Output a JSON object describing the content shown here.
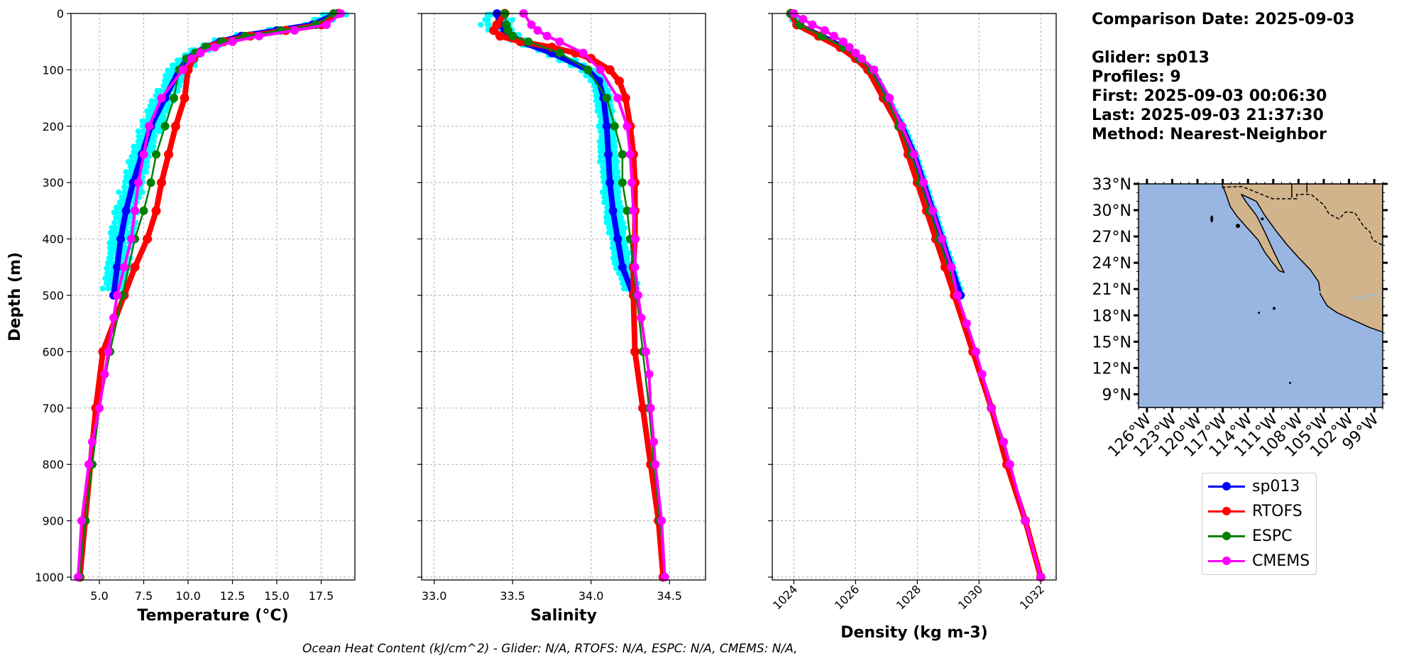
{
  "info": {
    "comparison_date": "Comparison Date: 2025-09-03",
    "glider": "Glider: sp013",
    "profiles": "Profiles: 9",
    "first": "First: 2025-09-03 00:06:30",
    "last": "Last: 2025-09-03 21:37:30",
    "method": "Method: Nearest-Neighbor"
  },
  "footer": "Ocean Heat Content (kJ/cm^2) - Glider: N/A,  RTOFS: N/A,  ESPC: N/A,  CMEMS: N/A,",
  "colors": {
    "glider": "#0000ff",
    "glider_profiles": "#00ffff",
    "rtofs": "#ff0000",
    "espc": "#008000",
    "cmems": "#ff00ff",
    "ocean": "#99b6e2",
    "land": "#d2b48c"
  },
  "legend": [
    {
      "label": "sp013",
      "color": "#0000ff"
    },
    {
      "label": "RTOFS",
      "color": "#ff0000"
    },
    {
      "label": "ESPC",
      "color": "#008000"
    },
    {
      "label": "CMEMS",
      "color": "#ff00ff"
    }
  ],
  "chart_data": [
    {
      "type": "line",
      "xlabel": "Temperature (°C)",
      "ylabel": "Depth (m)",
      "xlim": [
        3.4,
        19.4
      ],
      "ylim": [
        1005,
        0
      ],
      "xticks": [
        5.0,
        7.5,
        10.0,
        12.5,
        15.0,
        17.5
      ],
      "xtick_labels": [
        "5.0",
        "7.5",
        "10.0",
        "12.5",
        "15.0",
        "17.5"
      ],
      "yticks": [
        0,
        100,
        200,
        300,
        400,
        500,
        600,
        700,
        800,
        900,
        1000
      ],
      "grid": true,
      "series": [
        {
          "name": "sp013",
          "depth": [
            0,
            20,
            30,
            40,
            50,
            60,
            70,
            80,
            100,
            150,
            200,
            250,
            300,
            350,
            400,
            450,
            500
          ],
          "values": [
            18.4,
            17.0,
            15.0,
            13.0,
            11.8,
            11.0,
            10.4,
            10.0,
            9.5,
            8.7,
            7.9,
            7.4,
            6.9,
            6.5,
            6.2,
            6.0,
            5.8
          ]
        },
        {
          "name": "RTOFS",
          "depth": [
            0,
            20,
            30,
            40,
            50,
            60,
            70,
            80,
            100,
            150,
            200,
            250,
            300,
            350,
            400,
            450,
            500,
            600,
            700,
            800,
            900,
            1000
          ],
          "values": [
            18.5,
            17.5,
            15.5,
            13.5,
            12.0,
            11.0,
            10.6,
            10.3,
            10.0,
            9.8,
            9.3,
            8.9,
            8.5,
            8.2,
            7.7,
            7.0,
            6.4,
            5.2,
            4.8,
            4.5,
            4.2,
            3.9
          ]
        },
        {
          "name": "ESPC",
          "depth": [
            0,
            20,
            30,
            40,
            50,
            60,
            70,
            80,
            100,
            150,
            200,
            250,
            300,
            350,
            400,
            500,
            600,
            700,
            800,
            900,
            1000
          ],
          "values": [
            18.2,
            17.2,
            15.2,
            13.2,
            11.9,
            11.0,
            10.4,
            9.9,
            9.5,
            9.2,
            8.7,
            8.2,
            7.9,
            7.5,
            7.0,
            6.3,
            5.6,
            5.0,
            4.6,
            4.2,
            3.9
          ]
        },
        {
          "name": "CMEMS",
          "depth": [
            0,
            20,
            30,
            40,
            50,
            60,
            70,
            80,
            100,
            150,
            200,
            250,
            300,
            350,
            400,
            450,
            500,
            540,
            600,
            640,
            700,
            760,
            800,
            900,
            1000
          ],
          "values": [
            18.6,
            17.8,
            16.0,
            14.0,
            12.5,
            11.5,
            10.7,
            10.2,
            9.7,
            8.5,
            7.8,
            7.5,
            7.2,
            7.0,
            6.8,
            6.4,
            6.0,
            5.8,
            5.5,
            5.3,
            5.0,
            4.6,
            4.4,
            4.0,
            3.8
          ]
        }
      ]
    },
    {
      "type": "line",
      "xlabel": "Salinity",
      "xlim": [
        32.92,
        34.73
      ],
      "ylim": [
        1005,
        0
      ],
      "xticks": [
        33.0,
        33.5,
        34.0,
        34.5
      ],
      "xtick_labels": [
        "33.0",
        "33.5",
        "34.0",
        "34.5"
      ],
      "grid": true,
      "series": [
        {
          "name": "sp013",
          "depth": [
            0,
            20,
            30,
            40,
            50,
            70,
            100,
            120,
            150,
            200,
            250,
            300,
            350,
            400,
            450,
            500
          ],
          "values": [
            33.4,
            33.42,
            33.45,
            33.5,
            33.55,
            33.75,
            33.98,
            34.05,
            34.08,
            34.1,
            34.11,
            34.12,
            34.14,
            34.17,
            34.2,
            34.27
          ]
        },
        {
          "name": "RTOFS",
          "depth": [
            0,
            20,
            30,
            40,
            50,
            60,
            70,
            80,
            100,
            120,
            150,
            200,
            250,
            300,
            350,
            400,
            450,
            500,
            600,
            700,
            800,
            900,
            1000
          ],
          "values": [
            33.45,
            33.4,
            33.38,
            33.42,
            33.55,
            33.75,
            33.9,
            34.0,
            34.12,
            34.18,
            34.22,
            34.25,
            34.27,
            34.28,
            34.28,
            34.28,
            34.27,
            34.27,
            34.28,
            34.33,
            34.38,
            34.43,
            34.46
          ]
        },
        {
          "name": "ESPC",
          "depth": [
            0,
            20,
            30,
            40,
            50,
            70,
            100,
            150,
            200,
            250,
            300,
            350,
            400,
            500,
            600,
            700,
            800,
            900,
            1000
          ],
          "values": [
            33.45,
            33.46,
            33.47,
            33.5,
            33.6,
            33.8,
            33.98,
            34.1,
            34.15,
            34.2,
            34.2,
            34.23,
            34.25,
            34.29,
            34.33,
            34.37,
            34.4,
            34.44,
            34.47
          ]
        },
        {
          "name": "CMEMS",
          "depth": [
            0,
            20,
            30,
            40,
            50,
            70,
            100,
            150,
            200,
            250,
            300,
            350,
            400,
            450,
            500,
            540,
            600,
            640,
            700,
            760,
            800,
            900,
            1000
          ],
          "values": [
            33.57,
            33.62,
            33.66,
            33.72,
            33.8,
            33.95,
            34.06,
            34.17,
            34.23,
            34.25,
            34.26,
            34.27,
            34.28,
            34.28,
            34.3,
            34.32,
            34.35,
            34.37,
            34.38,
            34.4,
            34.41,
            34.45,
            34.47
          ]
        }
      ]
    },
    {
      "type": "line",
      "xlabel": "Density (kg m-3)",
      "xlim": [
        1023.3,
        1032.5
      ],
      "ylim": [
        1005,
        0
      ],
      "xticks": [
        1024,
        1026,
        1028,
        1030,
        1032
      ],
      "xtick_labels": [
        "1024",
        "1026",
        "1028",
        "1030",
        "1032"
      ],
      "grid": true,
      "series": [
        {
          "name": "sp013",
          "depth": [
            0,
            20,
            40,
            60,
            80,
            100,
            150,
            200,
            250,
            300,
            350,
            400,
            450,
            500
          ],
          "values": [
            1023.9,
            1024.1,
            1024.9,
            1025.6,
            1026.1,
            1026.5,
            1027.0,
            1027.5,
            1027.9,
            1028.2,
            1028.5,
            1028.8,
            1029.1,
            1029.4
          ]
        },
        {
          "name": "RTOFS",
          "depth": [
            0,
            20,
            40,
            60,
            80,
            100,
            150,
            200,
            250,
            300,
            350,
            400,
            450,
            500,
            600,
            700,
            800,
            900,
            1000
          ],
          "values": [
            1023.9,
            1024.1,
            1024.8,
            1025.5,
            1026.0,
            1026.4,
            1026.9,
            1027.4,
            1027.7,
            1028.0,
            1028.3,
            1028.6,
            1028.9,
            1029.2,
            1029.8,
            1030.4,
            1030.9,
            1031.5,
            1032.0
          ]
        },
        {
          "name": "ESPC",
          "depth": [
            0,
            20,
            40,
            60,
            80,
            100,
            150,
            200,
            250,
            300,
            350,
            400,
            500,
            600,
            700,
            800,
            900,
            1000
          ],
          "values": [
            1023.9,
            1024.2,
            1024.9,
            1025.6,
            1026.1,
            1026.5,
            1027.0,
            1027.4,
            1027.8,
            1028.1,
            1028.4,
            1028.7,
            1029.3,
            1029.9,
            1030.4,
            1031.0,
            1031.5,
            1032.0
          ]
        },
        {
          "name": "CMEMS",
          "depth": [
            0,
            10,
            20,
            30,
            40,
            50,
            60,
            70,
            80,
            100,
            150,
            200,
            250,
            300,
            350,
            400,
            450,
            500,
            550,
            600,
            640,
            700,
            760,
            800,
            900,
            1000
          ],
          "values": [
            1024.0,
            1024.3,
            1024.6,
            1025.0,
            1025.3,
            1025.6,
            1025.8,
            1026.0,
            1026.2,
            1026.6,
            1027.1,
            1027.5,
            1027.9,
            1028.2,
            1028.5,
            1028.8,
            1029.1,
            1029.3,
            1029.6,
            1029.9,
            1030.1,
            1030.4,
            1030.8,
            1031.0,
            1031.5,
            1032.0
          ]
        }
      ]
    },
    {
      "type": "map",
      "lat_ticks": [
        "33°N",
        "30°N",
        "27°N",
        "24°N",
        "21°N",
        "18°N",
        "15°N",
        "12°N",
        "9°N"
      ],
      "lon_ticks": [
        "126°W",
        "123°W",
        "120°W",
        "117°W",
        "114°W",
        "111°W",
        "108°W",
        "105°W",
        "102°W",
        "99°W"
      ],
      "lat_range": [
        7.5,
        33
      ],
      "lon_range": [
        -127,
        -98
      ]
    }
  ]
}
